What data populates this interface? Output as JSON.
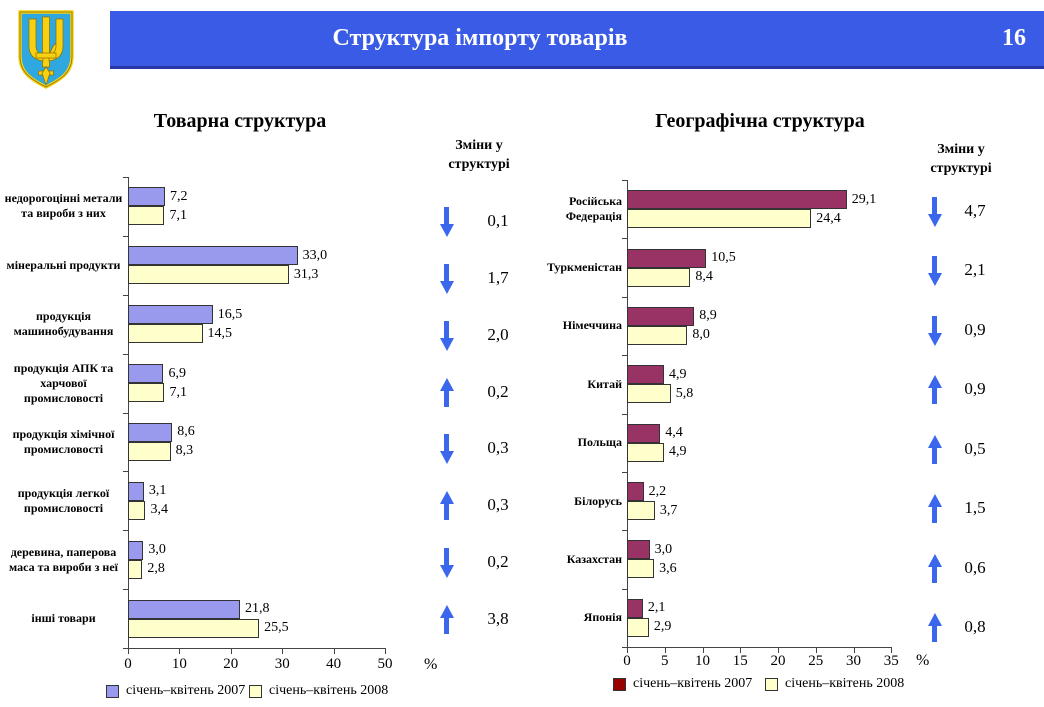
{
  "header": {
    "title": "Структура імпорту товарів",
    "page_number": "16"
  },
  "emblem_icon": "ukraine-coat-of-arms",
  "colors": {
    "header_bar": "#3a5be5",
    "header_bar_edge": "#2737a6",
    "arrow_blue": "#3a67ec",
    "axis": "#444444",
    "shield_blue": "#2fa8e0",
    "trident_yellow": "#f7d011"
  },
  "chart_data": [
    {
      "type": "bar",
      "orientation": "horizontal",
      "title": "Товарна структура",
      "changes_header": "Зміни у структурі",
      "unit": "%",
      "xlim": [
        0,
        50
      ],
      "x_tick_labels": [
        "0",
        "10",
        "20",
        "30",
        "40",
        "50"
      ],
      "grid": false,
      "legend_position": "bottom",
      "categories": [
        "недорогоцінні метали та вироби з них",
        "мінеральні продукти",
        "продукція машинобудування",
        "продукція АПК та харчової промисловості",
        "продукція хімічної промисловості",
        "продукція легкої промисловості",
        "деревина, паперова маса та вироби з неї",
        "інші товари"
      ],
      "series": [
        {
          "name": "січень–квітень 2007",
          "color": "#9999ee",
          "legend_color": "#9999ee",
          "values": [
            "7,2",
            "33,0",
            "16,5",
            "6,9",
            "8,6",
            "3,1",
            "3,0",
            "21,8"
          ]
        },
        {
          "name": "січень–квітень 2008",
          "color": "#ffffcc",
          "legend_color": "#ffffcc",
          "values": [
            "7,1",
            "31,3",
            "14,5",
            "7,1",
            "8,3",
            "3,4",
            "2,8",
            "25,5"
          ]
        }
      ],
      "changes": [
        {
          "value": "0,1",
          "direction": "down"
        },
        {
          "value": "1,7",
          "direction": "down"
        },
        {
          "value": "2,0",
          "direction": "down"
        },
        {
          "value": "0,2",
          "direction": "up"
        },
        {
          "value": "0,3",
          "direction": "down"
        },
        {
          "value": "0,3",
          "direction": "up"
        },
        {
          "value": "0,2",
          "direction": "down"
        },
        {
          "value": "3,8",
          "direction": "up"
        }
      ]
    },
    {
      "type": "bar",
      "orientation": "horizontal",
      "title": "Географічна структура",
      "changes_header": "Зміни у структурі",
      "unit": "%",
      "xlim": [
        0,
        35
      ],
      "x_tick_labels": [
        "0",
        "5",
        "10",
        "15",
        "20",
        "25",
        "30",
        "35"
      ],
      "grid": false,
      "legend_position": "bottom",
      "categories": [
        "Російська Федерація",
        "Туркменістан",
        "Німеччина",
        "Китай",
        "Польща",
        "Білорусь",
        "Казахстан",
        "Японія"
      ],
      "series": [
        {
          "name": "січень–квітень 2007",
          "color": "#993366",
          "legend_color": "#990000",
          "values": [
            "29,1",
            "10,5",
            "8,9",
            "4,9",
            "4,4",
            "2,2",
            "3,0",
            "2,1"
          ]
        },
        {
          "name": "січень–квітень 2008",
          "color": "#ffffcc",
          "legend_color": "#ffffcc",
          "values": [
            "24,4",
            "8,4",
            "8,0",
            "5,8",
            "4,9",
            "3,7",
            "3,6",
            "2,9"
          ]
        }
      ],
      "changes": [
        {
          "value": "4,7",
          "direction": "down"
        },
        {
          "value": "2,1",
          "direction": "down"
        },
        {
          "value": "0,9",
          "direction": "down"
        },
        {
          "value": "0,9",
          "direction": "up"
        },
        {
          "value": "0,5",
          "direction": "up"
        },
        {
          "value": "1,5",
          "direction": "up"
        },
        {
          "value": "0,6",
          "direction": "up"
        },
        {
          "value": "0,8",
          "direction": "up"
        }
      ]
    }
  ]
}
